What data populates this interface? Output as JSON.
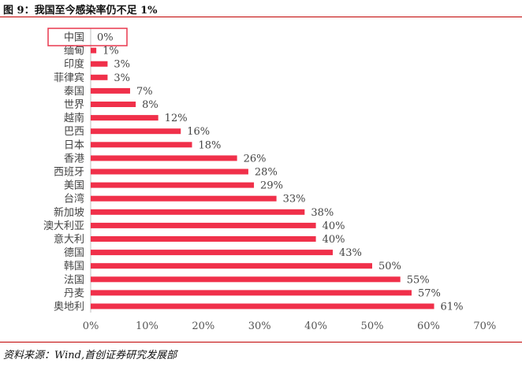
{
  "figure": {
    "title": "图 9：我国至今感染率仍不足 1%",
    "source": "资料来源：Wind,首创证券研究发展部"
  },
  "colors": {
    "bar": "#f0304a",
    "highlight_box": "#e8394f",
    "rule": "#c00000"
  },
  "chart_data": {
    "type": "bar",
    "orientation": "horizontal",
    "title": "",
    "xlabel": "",
    "ylabel": "",
    "value_suffix": "%",
    "xlim": [
      0,
      70
    ],
    "xticks": [
      0,
      10,
      20,
      30,
      40,
      50,
      60,
      70
    ],
    "xtick_labels": [
      "0%",
      "10%",
      "20%",
      "30%",
      "40%",
      "50%",
      "60%",
      "70%"
    ],
    "grid": false,
    "legend": "none",
    "highlighted_category": "中国",
    "categories": [
      "中国",
      "缅甸",
      "印度",
      "菲律宾",
      "泰国",
      "世界",
      "越南",
      "巴西",
      "日本",
      "香港",
      "西班牙",
      "美国",
      "台湾",
      "新加坡",
      "澳大利亚",
      "意大利",
      "德国",
      "韩国",
      "法国",
      "丹麦",
      "奥地利"
    ],
    "values": [
      0,
      1,
      3,
      3,
      7,
      8,
      12,
      16,
      18,
      26,
      28,
      29,
      33,
      38,
      40,
      40,
      43,
      50,
      55,
      57,
      61
    ],
    "value_labels": [
      "0%",
      "1%",
      "3%",
      "3%",
      "7%",
      "8%",
      "12%",
      "16%",
      "18%",
      "26%",
      "28%",
      "29%",
      "33%",
      "38%",
      "40%",
      "40%",
      "43%",
      "50%",
      "55%",
      "57%",
      "61%"
    ]
  }
}
